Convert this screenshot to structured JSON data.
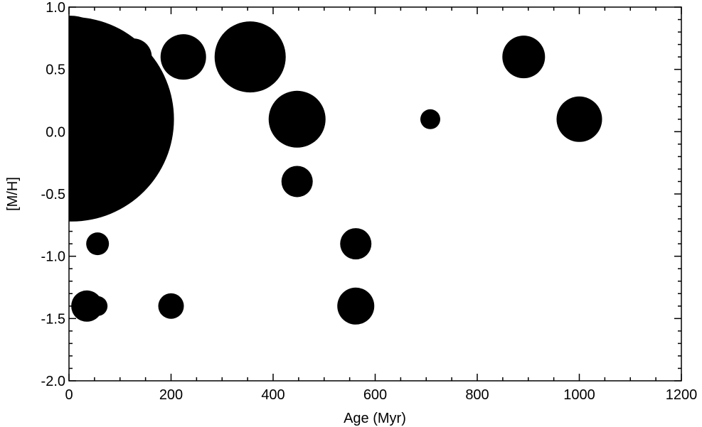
{
  "chart_data": {
    "type": "scatter",
    "title": "",
    "xlabel": "Age (Myr)",
    "ylabel": "[M/H]",
    "xlim": [
      0,
      1200
    ],
    "ylim": [
      -2.0,
      1.0
    ],
    "xticks": [
      0,
      200,
      400,
      600,
      800,
      1000,
      1200
    ],
    "yticks": [
      -2.0,
      -1.5,
      -1.0,
      -0.5,
      0.0,
      0.5,
      1.0
    ],
    "xtick_labels": [
      "0",
      "200",
      "400",
      "600",
      "800",
      "1000",
      "1200"
    ],
    "ytick_labels": [
      "-2.0",
      "-1.5",
      "-1.0",
      "-0.5",
      "0.0",
      "0.5",
      "1.0"
    ],
    "x_minor_step": 50,
    "y_minor_step": 0.1,
    "grid": false,
    "marker_color": "#000000",
    "marker_size_note": "marker size proportional to relative weight (0-1 scale)",
    "points": [
      {
        "x": 3,
        "y": 0.6,
        "size": 0.29
      },
      {
        "x": 5,
        "y": 0.1,
        "size": 0.72
      },
      {
        "x": 126,
        "y": 0.6,
        "size": 0.13
      },
      {
        "x": 224,
        "y": 0.6,
        "size": 0.16
      },
      {
        "x": 355,
        "y": 0.6,
        "size": 0.25
      },
      {
        "x": 447,
        "y": 0.1,
        "size": 0.2
      },
      {
        "x": 708,
        "y": 0.1,
        "size": 0.07
      },
      {
        "x": 891,
        "y": 0.6,
        "size": 0.15
      },
      {
        "x": 1000,
        "y": 0.1,
        "size": 0.16
      },
      {
        "x": 63,
        "y": -0.4,
        "size": 0.14
      },
      {
        "x": 112,
        "y": -0.4,
        "size": 0.1
      },
      {
        "x": 447,
        "y": -0.4,
        "size": 0.11
      },
      {
        "x": 56,
        "y": -0.9,
        "size": 0.08
      },
      {
        "x": 562,
        "y": -0.9,
        "size": 0.11
      },
      {
        "x": 35,
        "y": -1.4,
        "size": 0.11
      },
      {
        "x": 56,
        "y": -1.4,
        "size": 0.07
      },
      {
        "x": 200,
        "y": -1.4,
        "size": 0.09
      },
      {
        "x": 562,
        "y": -1.4,
        "size": 0.13
      }
    ]
  }
}
